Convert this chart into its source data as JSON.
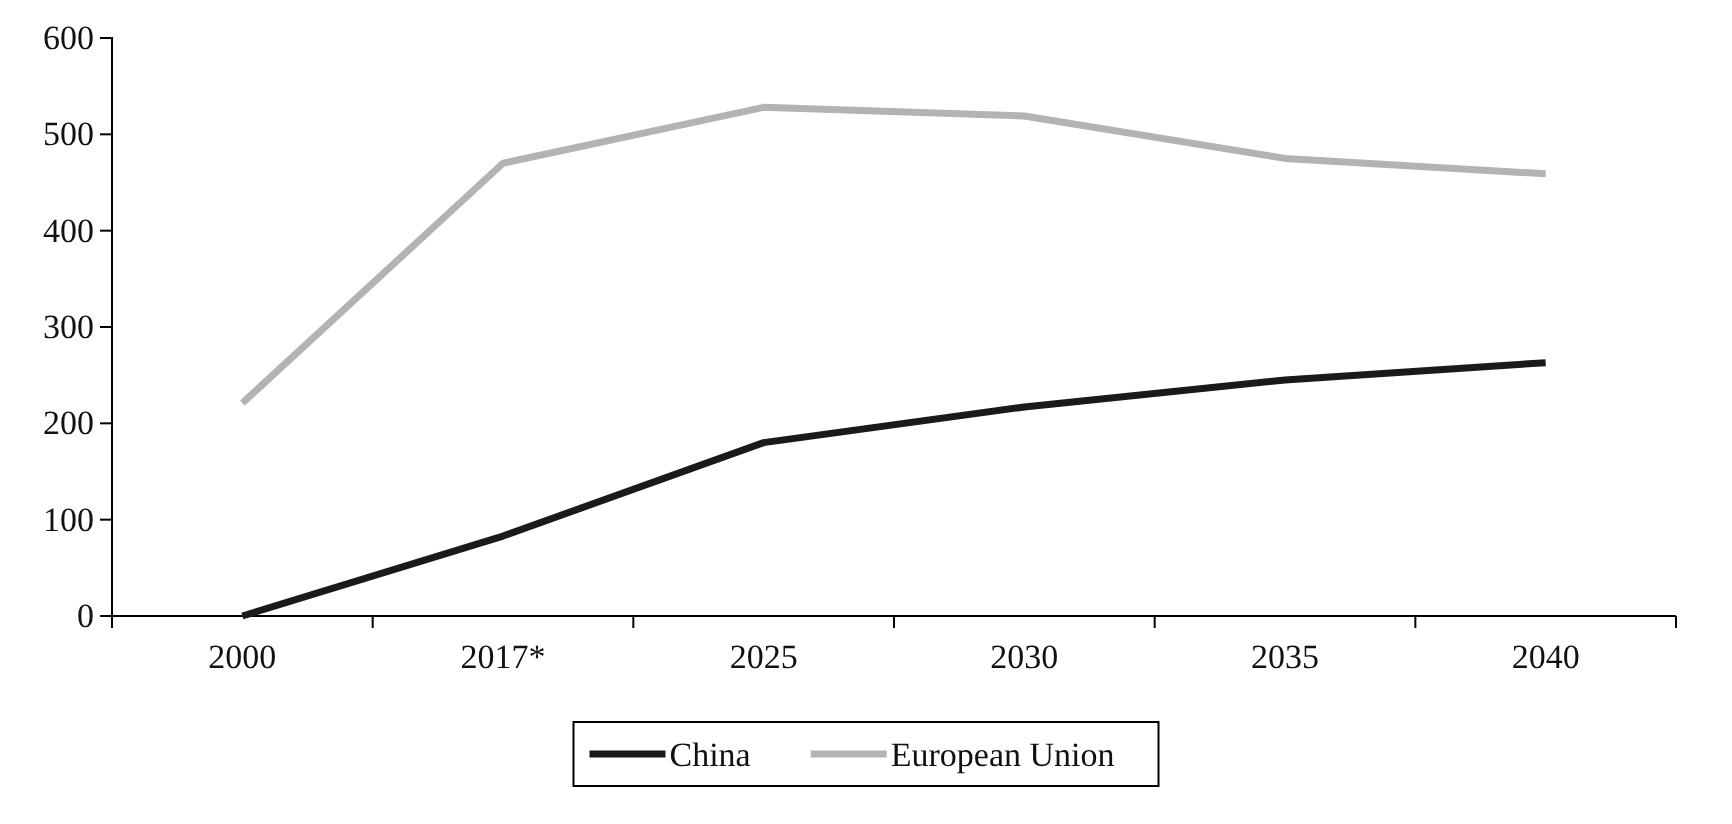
{
  "chart_data": {
    "type": "line",
    "categories": [
      "2000",
      "2017*",
      "2025",
      "2030",
      "2035",
      "2040"
    ],
    "series": [
      {
        "name": "China",
        "color": "#1a1a1a",
        "values": [
          0,
          83,
          180,
          217,
          245,
          263
        ]
      },
      {
        "name": "European Union",
        "color": "#b3b3b3",
        "values": [
          221,
          470,
          528,
          519,
          475,
          459
        ]
      }
    ],
    "ylim": [
      0,
      600
    ],
    "yticks": [
      0,
      100,
      200,
      300,
      400,
      500,
      600
    ],
    "grid": false,
    "legend": "bottom",
    "marker": "none",
    "line_style": "solid"
  }
}
